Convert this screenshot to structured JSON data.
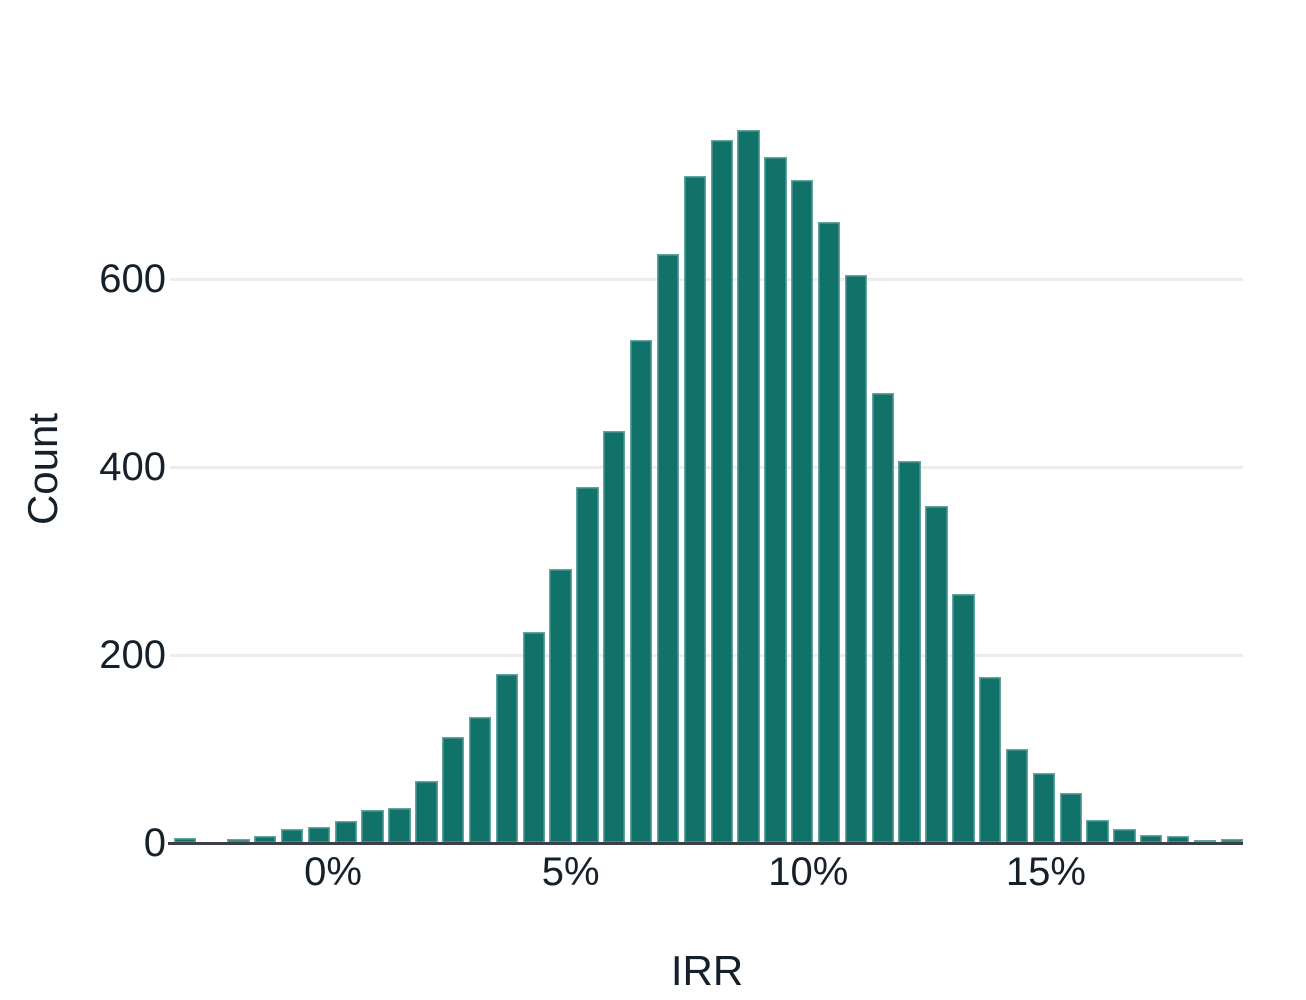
{
  "chart_data": {
    "type": "bar",
    "subtype": "histogram",
    "title": "",
    "xlabel": "IRR",
    "ylabel": "Count",
    "x_tick_labels": [
      "0%",
      "5%",
      "10%",
      "15%"
    ],
    "x_tick_values": [
      0,
      5,
      10,
      15
    ],
    "y_tick_labels": [
      "0",
      "200",
      "400",
      "600"
    ],
    "y_tick_values": [
      0,
      200,
      400,
      600
    ],
    "xlim_pct": [
      -3.33,
      19.17
    ],
    "ylim": [
      0,
      780
    ],
    "bin_width_pct": 0.56,
    "bin_centers_pct": [
      -3.06,
      -2.5,
      -1.94,
      -1.39,
      -0.83,
      -0.28,
      0.28,
      0.83,
      1.39,
      1.94,
      2.5,
      3.06,
      3.61,
      4.17,
      4.72,
      5.28,
      5.83,
      6.39,
      6.94,
      7.5,
      8.06,
      8.61,
      9.17,
      9.72,
      10.28,
      10.83,
      11.39,
      11.94,
      12.5,
      13.06,
      13.61,
      14.17,
      14.72,
      15.28,
      15.83,
      16.39,
      16.94,
      17.5,
      18.06,
      18.61
    ],
    "counts": [
      5,
      0,
      4,
      7,
      15,
      17,
      23,
      35,
      37,
      66,
      113,
      134,
      180,
      224,
      291,
      379,
      438,
      535,
      627,
      710,
      748,
      758,
      730,
      705,
      661,
      604,
      479,
      406,
      359,
      265,
      177,
      100,
      75,
      53,
      24,
      15,
      9,
      7,
      3,
      4
    ],
    "grid": "horizontal-major-only",
    "legend": "none",
    "colors": {
      "bar_fill": "#117269",
      "bar_edge": "#c4e3de",
      "gridline": "#ededed",
      "axis_line": "#3c4046",
      "text": "#16202b",
      "background": "#ffffff"
    }
  }
}
